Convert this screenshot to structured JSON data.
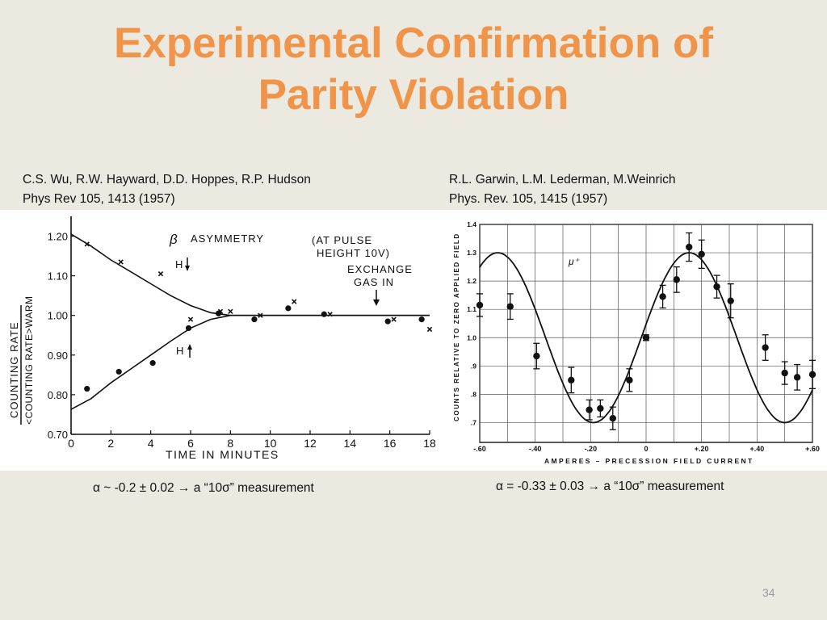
{
  "slide": {
    "title_line1": "Experimental Confirmation of",
    "title_line2": "Parity Violation",
    "page_number": "34",
    "accent_color": "#f0944a"
  },
  "left_panel": {
    "citation_line1": "C.S. Wu, R.W. Hayward, D.D. Hoppes, R.P. Hudson",
    "citation_line2": "Phys Rev 105, 1413 (1957)",
    "result_text": "α ~ -0.2 ± 0.02 → a “10σ” measurement"
  },
  "right_panel": {
    "citation_line1": "R.L. Garwin, L.M. Lederman, M.Weinrich",
    "citation_line2": "Phys. Rev. 105, 1415 (1957)",
    "result_text": "α = -0.33 ± 0.03 → a “10σ” measurement"
  },
  "chart_data": [
    {
      "type": "scatter",
      "xlabel": "TIME IN MINUTES",
      "ylabel_numerator": "COUNTING RATE",
      "ylabel_denominator": "<COUNTING RATE>WARM",
      "xlim": [
        0,
        18
      ],
      "ylim": [
        0.7,
        1.25
      ],
      "xticks": [
        0,
        2,
        4,
        6,
        8,
        10,
        12,
        14,
        16,
        18
      ],
      "xtick_labels": [
        "0",
        "2",
        "4",
        "6",
        "8",
        "10",
        "12",
        "14",
        "16",
        "18"
      ],
      "yticks": [
        0.7,
        0.8,
        0.9,
        1.0,
        1.1,
        1.2
      ],
      "ytick_labels": [
        "0.70",
        "0.80",
        "0.90",
        "1.00",
        "1.10",
        "1.20"
      ],
      "grid": false,
      "annotations": {
        "beta": "β",
        "asymmetry": "ASYMMETRY",
        "pulse_line1": "(AT PULSE",
        "pulse_line2": "HEIGHT 10V)",
        "exchange_line1": "EXCHANGE",
        "exchange_line2": "GAS IN",
        "h_label": "H"
      },
      "series": [
        {
          "marker": "x",
          "points": [
            [
              0.8,
              1.18
            ],
            [
              2.5,
              1.135
            ],
            [
              4.5,
              1.105
            ],
            [
              6.0,
              0.99
            ],
            [
              7.5,
              1.01
            ],
            [
              8.0,
              1.01
            ],
            [
              9.5,
              1.0
            ],
            [
              11.2,
              1.035
            ],
            [
              13.0,
              1.003
            ],
            [
              16.2,
              0.99
            ],
            [
              18.0,
              0.965
            ]
          ]
        },
        {
          "marker": "dot",
          "points": [
            [
              0.8,
              0.815
            ],
            [
              2.4,
              0.858
            ],
            [
              4.1,
              0.88
            ],
            [
              5.9,
              0.968
            ],
            [
              7.4,
              1.005
            ],
            [
              9.2,
              0.99
            ],
            [
              10.9,
              1.018
            ],
            [
              12.7,
              1.003
            ],
            [
              15.9,
              0.985
            ],
            [
              17.6,
              0.99
            ]
          ]
        },
        {
          "marker": "line",
          "points": [
            [
              0,
              1.205
            ],
            [
              1,
              1.175
            ],
            [
              2,
              1.14
            ],
            [
              3,
              1.11
            ],
            [
              4,
              1.08
            ],
            [
              5,
              1.05
            ],
            [
              6,
              1.025
            ],
            [
              7,
              1.007
            ],
            [
              8,
              1.0
            ],
            [
              9,
              1.0
            ],
            [
              18,
              1.0
            ]
          ]
        },
        {
          "marker": "line",
          "points": [
            [
              0,
              0.763
            ],
            [
              1,
              0.79
            ],
            [
              2,
              0.83
            ],
            [
              3,
              0.865
            ],
            [
              4,
              0.9
            ],
            [
              5,
              0.935
            ],
            [
              6,
              0.968
            ],
            [
              7,
              0.99
            ],
            [
              8,
              1.0
            ],
            [
              9,
              1.0
            ],
            [
              18,
              1.0
            ]
          ]
        }
      ]
    },
    {
      "type": "scatter",
      "xlabel": "AMPERES – PRECESSION FIELD CURRENT",
      "ylabel": "COUNTS RELATIVE TO ZERO APPLIED FIELD",
      "xlim": [
        -0.6,
        0.6
      ],
      "ylim": [
        0.63,
        1.4
      ],
      "xticks": [
        -0.6,
        -0.4,
        -0.2,
        0,
        0.2,
        0.4,
        0.6
      ],
      "xtick_labels": [
        "-.60",
        "-.40",
        "-.20",
        "0",
        "+.20",
        "+.40",
        "+.60"
      ],
      "yticks": [
        0.7,
        0.8,
        0.9,
        1.0,
        1.1,
        1.2,
        1.3,
        1.4
      ],
      "ytick_labels": [
        ".7",
        ".8",
        ".9",
        "1.0",
        "1.1",
        "1.2",
        "1.3",
        "1.4"
      ],
      "grid": true,
      "annotations": {
        "particle": "μ⁺"
      },
      "series": [
        {
          "marker": "dot_errorbar",
          "x": [
            -0.6,
            -0.49,
            -0.395,
            -0.27,
            -0.205,
            -0.165,
            -0.12,
            -0.06,
            0.0,
            0.06,
            0.11,
            0.155,
            0.2,
            0.255,
            0.305,
            0.43,
            0.5,
            0.545,
            0.6
          ],
          "y": [
            1.115,
            1.11,
            0.935,
            0.85,
            0.745,
            0.75,
            0.715,
            0.85,
            1.0,
            1.145,
            1.205,
            1.32,
            1.295,
            1.18,
            1.13,
            0.965,
            0.875,
            0.86,
            0.87
          ],
          "err": [
            0.04,
            0.045,
            0.045,
            0.045,
            0.035,
            0.03,
            0.04,
            0.04,
            0.01,
            0.04,
            0.045,
            0.05,
            0.05,
            0.04,
            0.06,
            0.045,
            0.04,
            0.045,
            0.05
          ]
        }
      ],
      "fit_curve": {
        "form": "offset + amplitude * cos(2π(x - phase)/period)",
        "offset": 1.0,
        "amplitude": 0.3,
        "phase": 0.155,
        "period": 0.69
      }
    }
  ]
}
